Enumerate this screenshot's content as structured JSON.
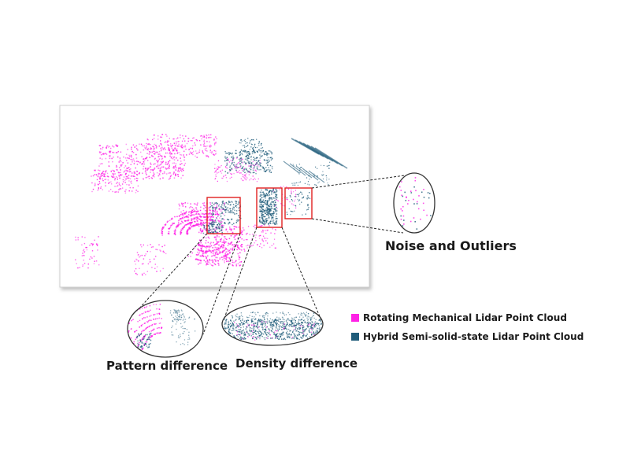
{
  "labels": {
    "noise": "Noise and Outliers",
    "pattern": "Pattern difference",
    "density": "Density difference"
  },
  "legend": [
    {
      "label": "Rotating Mechanical Lidar Point Cloud",
      "color": "#ff22e6"
    },
    {
      "label": "Hybrid Semi-solid-state Lidar Point Cloud",
      "color": "#1f5c7a"
    }
  ],
  "colors": {
    "mechanical": "#ff22e6",
    "semi_solid": "#1f5c7a",
    "highlight_box": "#e02020",
    "zoom_circle": "#333333"
  }
}
